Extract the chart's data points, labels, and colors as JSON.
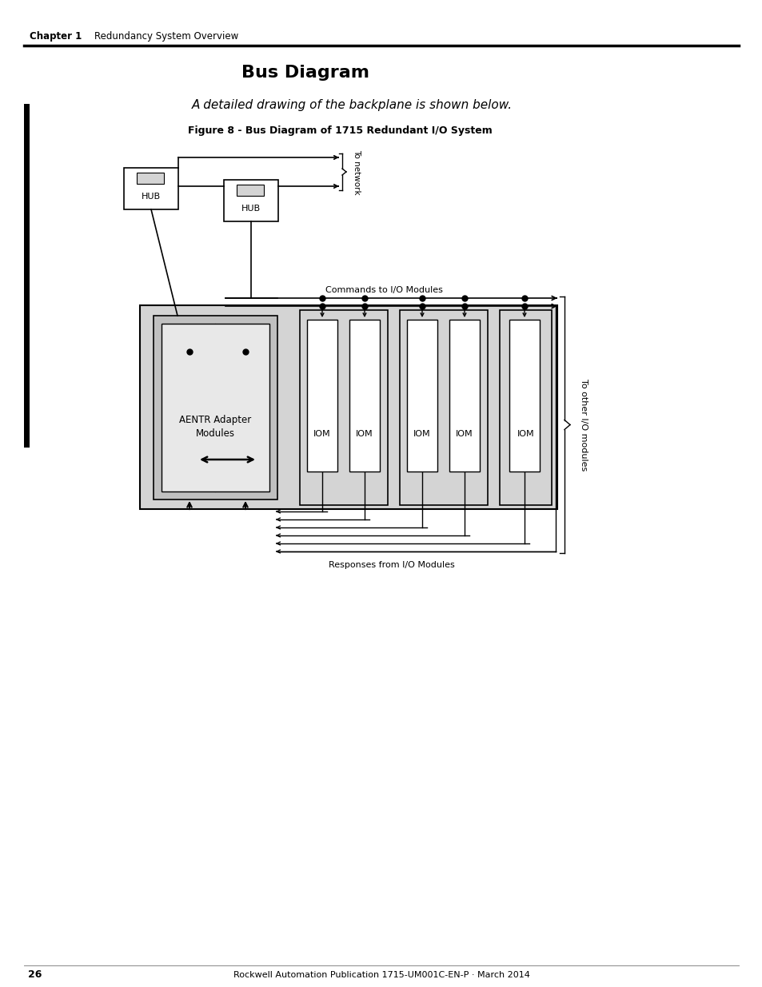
{
  "title": "Bus Diagram",
  "subtitle": "A detailed drawing of the backplane is shown below.",
  "figure_label": "Figure 8 - Bus Diagram of 1715 Redundant I/O System",
  "chapter": "Chapter 1",
  "chapter_sub": "Redundancy System Overview",
  "footer": "Rockwell Automation Publication 1715-UM001C-EN-P · March 2014",
  "page": "26",
  "bg_color": "#ffffff",
  "lc": "#000000",
  "gray_dark": "#c0c0c0",
  "gray_mid": "#d4d4d4",
  "gray_light": "#e8e8e8",
  "white": "#ffffff"
}
